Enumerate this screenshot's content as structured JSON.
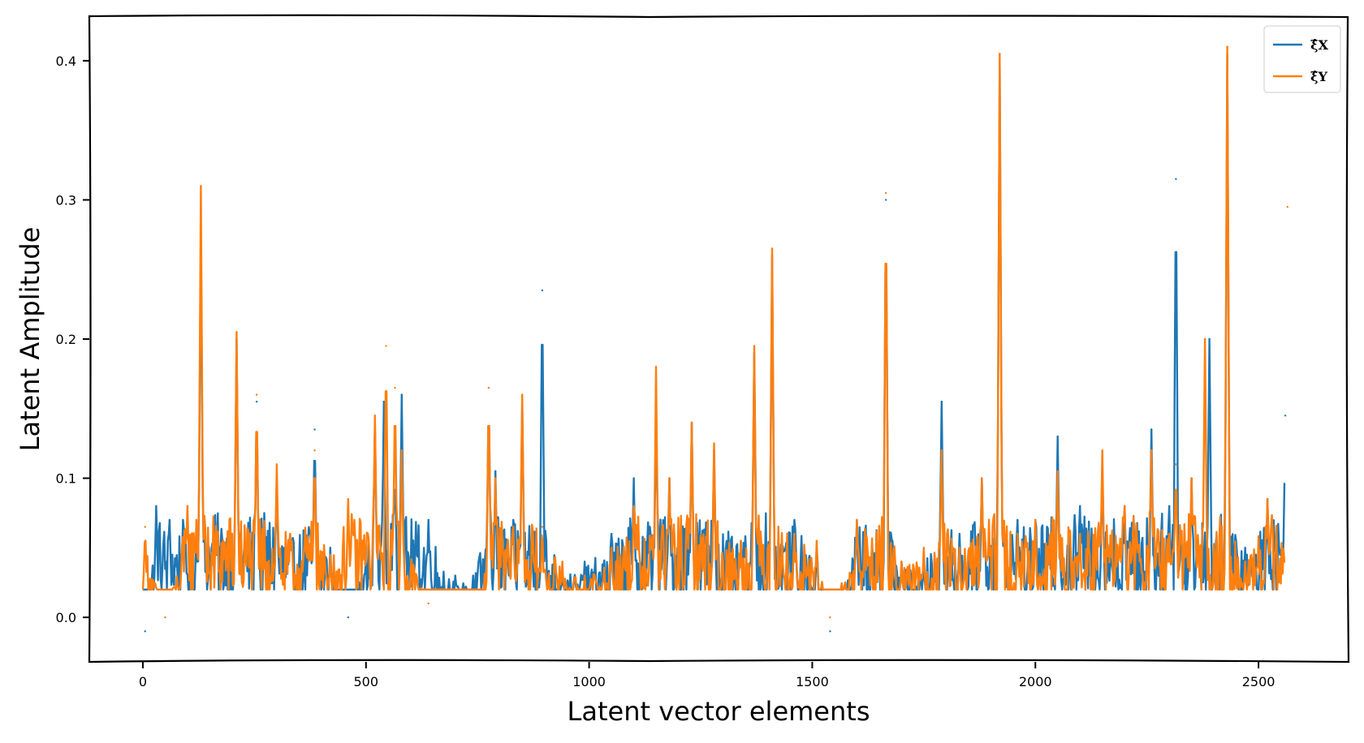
{
  "chart_data": {
    "type": "line",
    "title": "",
    "xlabel": "Latent vector elements",
    "ylabel": "Latent Amplitude",
    "xlim": [
      -120,
      2700
    ],
    "ylim": [
      -0.032,
      0.432
    ],
    "xticks": [
      0,
      500,
      1000,
      1500,
      2000,
      2500
    ],
    "yticks": [
      0.0,
      0.1,
      0.2,
      0.3,
      0.4
    ],
    "ytick_labels": [
      "0.0",
      "0.1",
      "0.2",
      "0.3",
      "0.4"
    ],
    "grid": false,
    "legend_position": "top-right",
    "n_points": 2560,
    "series": [
      {
        "name": "ξ̂X",
        "color": "#1f77b4",
        "peaks": [
          [
            5,
            -0.01
          ],
          [
            30,
            0.08
          ],
          [
            60,
            0.07
          ],
          [
            90,
            0.07
          ],
          [
            120,
            0.06
          ],
          [
            130,
            0.28
          ],
          [
            210,
            0.2
          ],
          [
            255,
            0.155
          ],
          [
            300,
            0.1
          ],
          [
            330,
            0.06
          ],
          [
            385,
            0.135
          ],
          [
            420,
            0.05
          ],
          [
            460,
            0.0
          ],
          [
            520,
            0.14
          ],
          [
            540,
            0.155
          ],
          [
            565,
            0.11
          ],
          [
            580,
            0.16
          ],
          [
            640,
            0.07
          ],
          [
            700,
            0.03
          ],
          [
            740,
            0.03
          ],
          [
            775,
            0.165
          ],
          [
            790,
            0.105
          ],
          [
            830,
            0.07
          ],
          [
            850,
            0.155
          ],
          [
            895,
            0.235
          ],
          [
            940,
            0.035
          ],
          [
            990,
            0.04
          ],
          [
            1050,
            0.06
          ],
          [
            1100,
            0.1
          ],
          [
            1150,
            0.15
          ],
          [
            1180,
            0.1
          ],
          [
            1230,
            0.14
          ],
          [
            1280,
            0.12
          ],
          [
            1340,
            0.055
          ],
          [
            1370,
            0.19
          ],
          [
            1410,
            0.26
          ],
          [
            1460,
            0.07
          ],
          [
            1510,
            0.05
          ],
          [
            1540,
            -0.01
          ],
          [
            1600,
            0.07
          ],
          [
            1665,
            0.3
          ],
          [
            1700,
            0.04
          ],
          [
            1750,
            0.04
          ],
          [
            1790,
            0.155
          ],
          [
            1830,
            0.06
          ],
          [
            1880,
            0.1
          ],
          [
            1920,
            0.4
          ],
          [
            1960,
            0.07
          ],
          [
            2000,
            0.07
          ],
          [
            2050,
            0.13
          ],
          [
            2100,
            0.08
          ],
          [
            2150,
            0.11
          ],
          [
            2200,
            0.08
          ],
          [
            2260,
            0.135
          ],
          [
            2300,
            0.08
          ],
          [
            2315,
            0.315
          ],
          [
            2350,
            0.1
          ],
          [
            2390,
            0.2
          ],
          [
            2430,
            0.405
          ],
          [
            2470,
            0.05
          ],
          [
            2520,
            0.085
          ],
          [
            2560,
            0.145
          ]
        ],
        "values_note": ""
      },
      {
        "name": "ξ̂Y",
        "color": "#ff7f0e",
        "peaks": [
          [
            5,
            0.065
          ],
          [
            50,
            0.0
          ],
          [
            100,
            0.08
          ],
          [
            120,
            0.07
          ],
          [
            130,
            0.31
          ],
          [
            210,
            0.205
          ],
          [
            255,
            0.16
          ],
          [
            300,
            0.11
          ],
          [
            330,
            0.06
          ],
          [
            385,
            0.12
          ],
          [
            420,
            0.045
          ],
          [
            460,
            0.085
          ],
          [
            520,
            0.145
          ],
          [
            545,
            0.195
          ],
          [
            565,
            0.165
          ],
          [
            580,
            0.12
          ],
          [
            640,
            0.01
          ],
          [
            700,
            0.02
          ],
          [
            760,
            0.02
          ],
          [
            775,
            0.165
          ],
          [
            790,
            0.1
          ],
          [
            830,
            0.065
          ],
          [
            850,
            0.16
          ],
          [
            895,
            0.065
          ],
          [
            940,
            0.04
          ],
          [
            990,
            0.03
          ],
          [
            1050,
            0.05
          ],
          [
            1100,
            0.08
          ],
          [
            1150,
            0.18
          ],
          [
            1180,
            0.1
          ],
          [
            1230,
            0.14
          ],
          [
            1280,
            0.125
          ],
          [
            1340,
            0.055
          ],
          [
            1370,
            0.195
          ],
          [
            1410,
            0.265
          ],
          [
            1460,
            0.06
          ],
          [
            1510,
            0.055
          ],
          [
            1540,
            0.0
          ],
          [
            1600,
            0.07
          ],
          [
            1665,
            0.305
          ],
          [
            1700,
            0.04
          ],
          [
            1750,
            0.05
          ],
          [
            1790,
            0.12
          ],
          [
            1830,
            0.05
          ],
          [
            1880,
            0.1
          ],
          [
            1920,
            0.405
          ],
          [
            1960,
            0.06
          ],
          [
            2000,
            0.07
          ],
          [
            2050,
            0.105
          ],
          [
            2100,
            0.06
          ],
          [
            2150,
            0.12
          ],
          [
            2200,
            0.08
          ],
          [
            2260,
            0.12
          ],
          [
            2300,
            0.06
          ],
          [
            2315,
            0.11
          ],
          [
            2350,
            0.1
          ],
          [
            2380,
            0.2
          ],
          [
            2430,
            0.41
          ],
          [
            2470,
            0.04
          ],
          [
            2520,
            0.085
          ],
          [
            2565,
            0.295
          ]
        ]
      }
    ]
  }
}
